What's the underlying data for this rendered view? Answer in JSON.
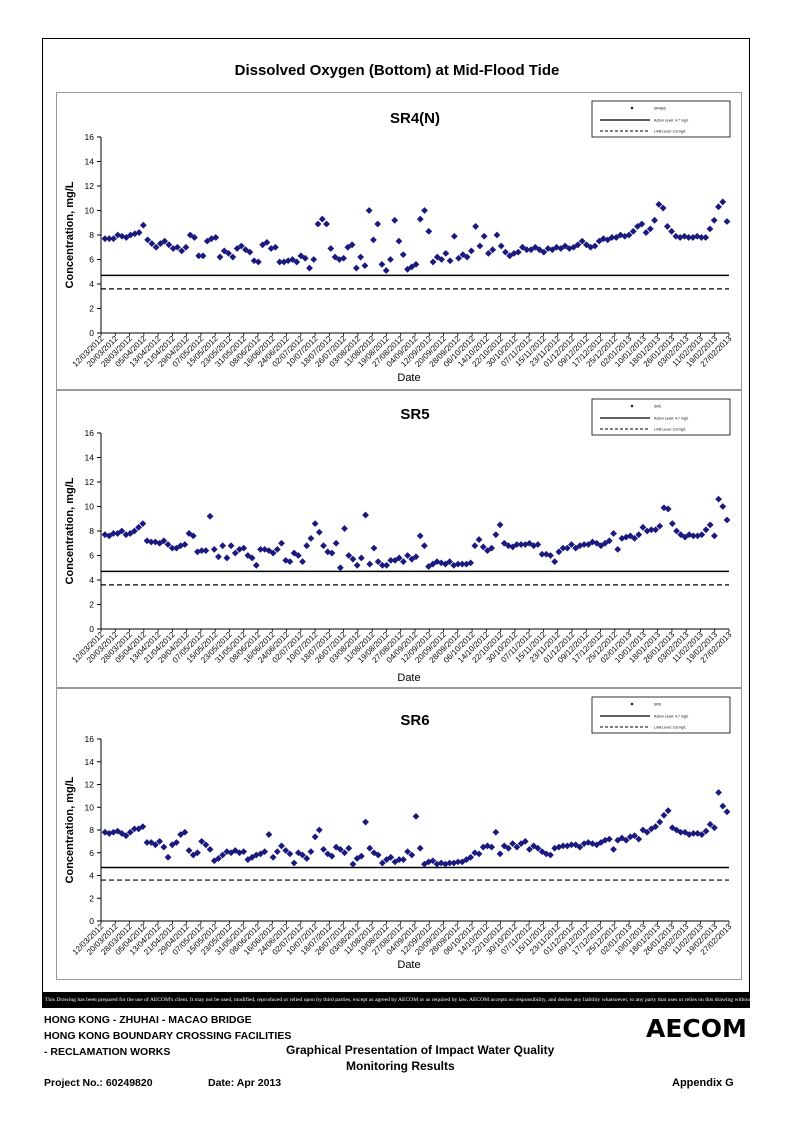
{
  "page_title": "Dissolved Oxygen (Bottom) at Mid-Flood Tide",
  "disclaimer": "This Drawing has been prepared for the use of AECOM's client. It may not be used, modified, reproduced or relied upon by third parties, except as agreed by AECOM or as required by law. AECOM accepts no responsibility, and denies any liability whatsoever, to any party that uses or relies on this drawing without AECOM's express written consent.",
  "footer": {
    "project_line1": "HONG KONG - ZHUHAI - MACAO BRIDGE",
    "project_line2": "HONG KONG BOUNDARY CROSSING FACILITIES",
    "project_line3": "- RECLAMATION WORKS",
    "drawing_title_line1": "Graphical Presentation of Impact Water Quality",
    "drawing_title_line2": "Monitoring Results",
    "project_no": "Project No.: 60249820",
    "date": "Date: Apr 2013",
    "appendix": "Appendix G",
    "logo": "AECOM"
  },
  "chart_data": [
    {
      "type": "scatter",
      "title": "SR4(N)",
      "xlabel": "Date",
      "ylabel": "Concentration, mg/L",
      "ylim": [
        0,
        16
      ],
      "yticks": [
        0,
        2,
        4,
        6,
        8,
        10,
        12,
        14,
        16
      ],
      "x_tick_labels": [
        "12/03/2012",
        "20/03/2012",
        "28/03/2012",
        "05/04/2012",
        "13/04/2012",
        "21/04/2012",
        "29/04/2012",
        "07/05/2012",
        "15/05/2012",
        "23/05/2012",
        "31/05/2012",
        "08/06/2012",
        "16/06/2012",
        "24/06/2012",
        "02/07/2012",
        "10/07/2012",
        "18/07/2012",
        "26/07/2012",
        "03/08/2012",
        "11/08/2012",
        "19/08/2012",
        "27/08/2012",
        "04/09/2012",
        "12/09/2012",
        "20/09/2012",
        "28/09/2012",
        "06/10/2012",
        "14/10/2012",
        "22/10/2012",
        "30/10/2012",
        "07/11/2012",
        "15/11/2012",
        "23/11/2012",
        "01/12/2012",
        "09/12/2012",
        "17/12/2012",
        "25/12/2012",
        "02/01/2013",
        "10/01/2013",
        "18/01/2013",
        "26/01/2013",
        "03/02/2013",
        "11/02/2013",
        "19/02/2013",
        "27/02/2013"
      ],
      "series": [
        {
          "name": "SR4(N)",
          "values": [
            7.7,
            7.7,
            7.7,
            8.0,
            7.9,
            7.8,
            8.0,
            8.1,
            8.2,
            8.8,
            7.6,
            7.3,
            7.0,
            7.3,
            7.5,
            7.2,
            6.9,
            7.0,
            6.7,
            7.0,
            8.0,
            7.8,
            6.3,
            6.3,
            7.5,
            7.7,
            7.8,
            6.2,
            6.7,
            6.5,
            6.2,
            6.9,
            7.1,
            6.8,
            6.6,
            5.9,
            5.8,
            7.2,
            7.4,
            6.9,
            7.0,
            5.8,
            5.8,
            5.9,
            6.0,
            5.8,
            6.3,
            6.1,
            5.3,
            6.0,
            8.9,
            9.3,
            8.9,
            6.9,
            6.2,
            6.0,
            6.1,
            7.0,
            7.2,
            5.3,
            6.2,
            5.5,
            10.0,
            7.6,
            8.9,
            5.6,
            5.1,
            6.0,
            9.2,
            7.5,
            6.4,
            5.2,
            5.4,
            5.6,
            9.3,
            10.0,
            8.3,
            5.8,
            6.2,
            6.0,
            6.5,
            5.9,
            7.9,
            6.1,
            6.4,
            6.2,
            6.7,
            8.7,
            7.1,
            7.9,
            6.5,
            6.8,
            8.0,
            7.1,
            6.6,
            6.3,
            6.5,
            6.6,
            7.0,
            6.8,
            6.8,
            7.0,
            6.8,
            6.6,
            6.9,
            6.8,
            7.0,
            6.9,
            7.1,
            6.9,
            7.0,
            7.2,
            7.5,
            7.2,
            7.0,
            7.1,
            7.5,
            7.7,
            7.6,
            7.8,
            7.8,
            8.0,
            7.9,
            8.0,
            8.3,
            8.7,
            8.9,
            8.2,
            8.5,
            9.2,
            10.5,
            10.2,
            8.7,
            8.3,
            7.9,
            7.8,
            7.9,
            7.8,
            7.8,
            7.9,
            7.8,
            7.8,
            8.5,
            9.2,
            10.3,
            10.7,
            9.1
          ]
        },
        {
          "name": "Action Level: 4.7 mg/L",
          "value": 4.7,
          "style": "solid"
        },
        {
          "name": "Limit Level: 3.6 mg/L",
          "value": 3.6,
          "style": "dashed"
        }
      ],
      "legend": "top-right"
    },
    {
      "type": "scatter",
      "title": "SR5",
      "xlabel": "Date",
      "ylabel": "Concentration, mg/L",
      "ylim": [
        0,
        16
      ],
      "yticks": [
        0,
        2,
        4,
        6,
        8,
        10,
        12,
        14,
        16
      ],
      "x_tick_labels": [
        "12/03/2012",
        "20/03/2012",
        "28/03/2012",
        "05/04/2012",
        "13/04/2012",
        "21/04/2012",
        "29/04/2012",
        "07/05/2012",
        "15/05/2012",
        "23/05/2012",
        "31/05/2012",
        "08/06/2012",
        "16/06/2012",
        "24/06/2012",
        "02/07/2012",
        "10/07/2012",
        "18/07/2012",
        "26/07/2012",
        "03/08/2012",
        "11/08/2012",
        "19/08/2012",
        "27/08/2012",
        "04/09/2012",
        "12/09/2012",
        "20/09/2012",
        "28/09/2012",
        "06/10/2012",
        "14/10/2012",
        "22/10/2012",
        "30/10/2012",
        "07/11/2012",
        "15/11/2012",
        "23/11/2012",
        "01/12/2012",
        "09/12/2012",
        "17/12/2012",
        "25/12/2012",
        "02/01/2013",
        "10/01/2013",
        "18/01/2013",
        "26/01/2013",
        "03/02/2013",
        "11/02/2013",
        "19/02/2013",
        "27/02/2013"
      ],
      "series": [
        {
          "name": "SR5",
          "values": [
            7.7,
            7.6,
            7.8,
            7.8,
            8.0,
            7.7,
            7.8,
            8.0,
            8.3,
            8.6,
            7.2,
            7.1,
            7.1,
            7.0,
            7.2,
            6.9,
            6.6,
            6.6,
            6.8,
            6.9,
            7.8,
            7.6,
            6.3,
            6.4,
            6.4,
            9.2,
            6.5,
            5.9,
            6.8,
            5.8,
            6.8,
            6.2,
            6.5,
            6.6,
            6.0,
            5.8,
            5.2,
            6.5,
            6.5,
            6.4,
            6.2,
            6.5,
            7.0,
            5.6,
            5.5,
            6.2,
            6.0,
            5.5,
            6.8,
            7.4,
            8.6,
            7.9,
            6.8,
            6.3,
            6.2,
            7.0,
            5.0,
            8.2,
            6.0,
            5.7,
            5.2,
            5.8,
            9.3,
            5.3,
            6.6,
            5.5,
            5.2,
            5.2,
            5.6,
            5.6,
            5.8,
            5.5,
            6.0,
            5.7,
            5.9,
            7.6,
            6.8,
            5.1,
            5.3,
            5.5,
            5.4,
            5.3,
            5.5,
            5.2,
            5.3,
            5.3,
            5.3,
            5.4,
            6.8,
            7.3,
            6.7,
            6.4,
            6.6,
            7.7,
            8.5,
            7.0,
            6.8,
            6.7,
            6.9,
            6.9,
            6.9,
            7.0,
            6.8,
            6.9,
            6.1,
            6.1,
            6.0,
            5.5,
            6.3,
            6.6,
            6.6,
            6.9,
            6.6,
            6.8,
            6.9,
            6.9,
            7.1,
            7.0,
            6.8,
            7.0,
            7.2,
            7.8,
            6.5,
            7.4,
            7.5,
            7.6,
            7.4,
            7.7,
            8.3,
            8.0,
            8.1,
            8.1,
            8.4,
            9.9,
            9.8,
            8.6,
            8.0,
            7.7,
            7.5,
            7.7,
            7.6,
            7.6,
            7.7,
            8.1,
            8.5,
            7.6,
            10.6,
            10.0,
            8.9
          ]
        },
        {
          "name": "Action Level: 4.7 mg/L",
          "value": 4.7,
          "style": "solid"
        },
        {
          "name": "Limit Level: 3.6 mg/L",
          "value": 3.6,
          "style": "dashed"
        }
      ],
      "legend": "top-right"
    },
    {
      "type": "scatter",
      "title": "SR6",
      "xlabel": "Date",
      "ylabel": "Concentration, mg/L",
      "ylim": [
        0,
        16
      ],
      "yticks": [
        0,
        2,
        4,
        6,
        8,
        10,
        12,
        14,
        16
      ],
      "x_tick_labels": [
        "12/03/2012",
        "20/03/2012",
        "28/03/2012",
        "05/04/2012",
        "13/04/2012",
        "21/04/2012",
        "29/04/2012",
        "07/05/2012",
        "15/05/2012",
        "23/05/2012",
        "31/05/2012",
        "08/06/2012",
        "16/06/2012",
        "24/06/2012",
        "02/07/2012",
        "10/07/2012",
        "18/07/2012",
        "26/07/2012",
        "03/08/2012",
        "11/08/2012",
        "19/08/2012",
        "27/08/2012",
        "04/09/2012",
        "12/09/2012",
        "20/09/2012",
        "28/09/2012",
        "06/10/2012",
        "14/10/2012",
        "22/10/2012",
        "30/10/2012",
        "07/11/2012",
        "15/11/2012",
        "23/11/2012",
        "01/12/2012",
        "09/12/2012",
        "17/12/2012",
        "25/12/2012",
        "02/01/2013",
        "10/01/2013",
        "18/01/2013",
        "26/01/2013",
        "03/02/2013",
        "11/02/2013",
        "19/02/2013",
        "27/02/2013"
      ],
      "series": [
        {
          "name": "SR6",
          "values": [
            7.8,
            7.7,
            7.8,
            7.9,
            7.7,
            7.5,
            7.8,
            8.1,
            8.1,
            8.3,
            6.9,
            6.9,
            6.7,
            7.0,
            6.5,
            5.6,
            6.7,
            6.9,
            7.6,
            7.8,
            6.2,
            5.8,
            6.0,
            7.0,
            6.7,
            6.3,
            5.3,
            5.5,
            5.8,
            6.1,
            6.0,
            6.2,
            6.0,
            6.1,
            5.4,
            5.6,
            5.8,
            5.9,
            6.1,
            7.6,
            5.6,
            6.1,
            6.6,
            6.2,
            5.9,
            5.1,
            6.0,
            5.8,
            5.5,
            6.1,
            7.4,
            8.0,
            6.3,
            5.9,
            5.7,
            6.5,
            6.3,
            6.0,
            6.4,
            5.0,
            5.5,
            5.7,
            8.7,
            6.4,
            6.0,
            5.8,
            5.1,
            5.4,
            5.6,
            5.2,
            5.4,
            5.4,
            6.1,
            5.8,
            9.2,
            6.4,
            5.0,
            5.2,
            5.3,
            5.0,
            5.1,
            5.0,
            5.1,
            5.1,
            5.2,
            5.2,
            5.4,
            5.6,
            6.0,
            5.9,
            6.5,
            6.6,
            6.5,
            7.8,
            5.9,
            6.6,
            6.4,
            6.8,
            6.5,
            6.8,
            7.0,
            6.3,
            6.6,
            6.4,
            6.1,
            5.9,
            5.8,
            6.4,
            6.5,
            6.6,
            6.6,
            6.7,
            6.7,
            6.5,
            6.8,
            6.9,
            6.8,
            6.7,
            6.9,
            7.1,
            7.2,
            6.3,
            7.1,
            7.3,
            7.1,
            7.4,
            7.5,
            7.2,
            8.0,
            7.8,
            8.1,
            8.3,
            8.7,
            9.3,
            9.7,
            8.2,
            8.0,
            7.8,
            7.8,
            7.6,
            7.7,
            7.7,
            7.6,
            7.9,
            8.5,
            8.2,
            11.3,
            10.1,
            9.6
          ]
        },
        {
          "name": "Action Level: 4.7 mg/L",
          "value": 4.7,
          "style": "solid"
        },
        {
          "name": "Limit Level: 3.6 mg/L",
          "value": 3.6,
          "style": "dashed"
        }
      ],
      "legend": "top-right"
    }
  ],
  "colors": {
    "marker": "#1a1a7e",
    "axis": "#000000",
    "lines": "#000000"
  }
}
